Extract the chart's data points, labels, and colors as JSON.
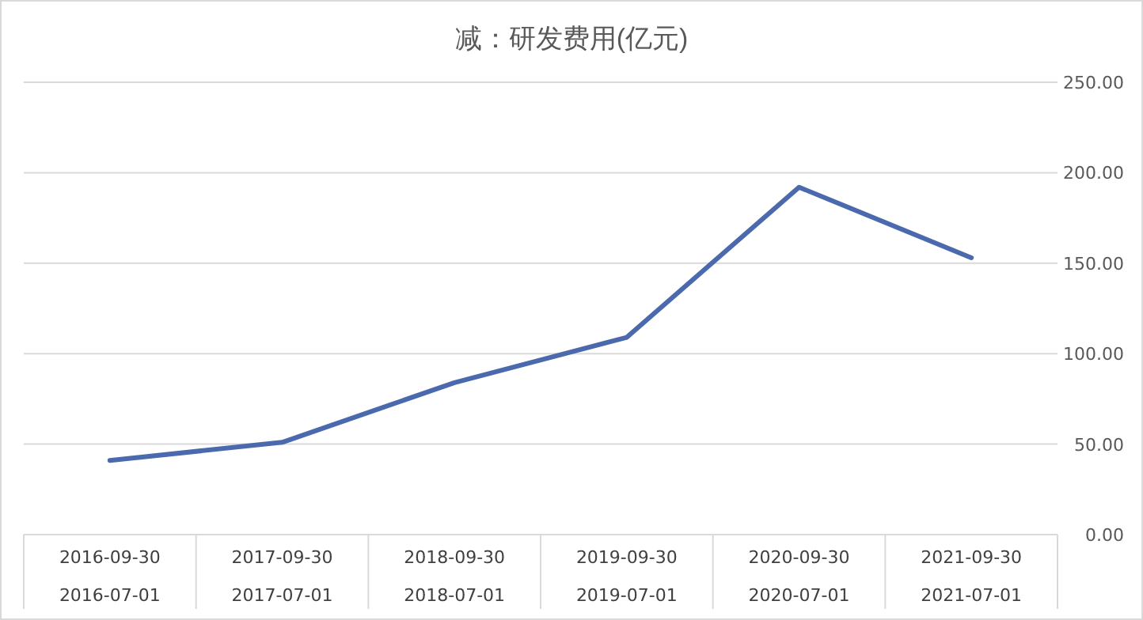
{
  "chart_data": {
    "type": "line",
    "title": "减：研发费用(亿元)",
    "categories": [
      "2016-09-30\n2016-07-01",
      "2017-09-30\n2017-07-01",
      "2018-09-30\n2018-07-01",
      "2019-09-30\n2019-07-01",
      "2020-09-30\n2020-07-01",
      "2021-09-30\n2021-07-01"
    ],
    "series": [
      {
        "color": "#4a6aad",
        "values": [
          41,
          51,
          84,
          109,
          192,
          153
        ]
      }
    ],
    "ylim": [
      0,
      250
    ],
    "yticks": [
      {
        "value": 0,
        "label": "0.00"
      },
      {
        "value": 50,
        "label": "50.00"
      },
      {
        "value": 100,
        "label": "100.00"
      },
      {
        "value": 150,
        "label": "150.00"
      },
      {
        "value": 200,
        "label": "200.00"
      },
      {
        "value": 250,
        "label": "250.00"
      }
    ],
    "grid": "y",
    "marker": "none",
    "line_style": "solid"
  }
}
